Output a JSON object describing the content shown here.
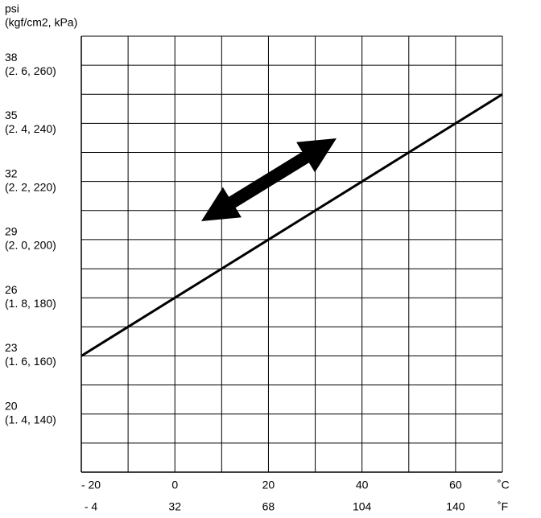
{
  "chart_data": {
    "type": "line",
    "ylabel": "psi",
    "ylabel2": "(kgf/cm2, kPa)",
    "xlabel": "˚C",
    "xlabel2": "˚F",
    "x": [
      -20,
      0,
      20,
      40,
      60,
      70
    ],
    "series": [
      {
        "color": "#000000",
        "values": [
          23,
          26,
          29,
          32,
          35,
          36.5
        ]
      }
    ],
    "xlim": [
      -20,
      70
    ],
    "ylim": [
      17,
      39.5
    ],
    "xticks": [
      {
        "value": -20,
        "label": "- 20"
      },
      0,
      20,
      40,
      60
    ],
    "xtick_secondary_labels": [
      "- 4",
      "32",
      "68",
      "104",
      "140"
    ],
    "yticks": [
      20,
      23,
      26,
      29,
      32,
      35,
      38
    ],
    "ytick_secondary_labels": [
      "(1. 4, 140)",
      "(1. 6, 160)",
      "(1. 8, 180)",
      "(2. 0, 200)",
      "(2. 2, 220)",
      "(2. 4, 240)",
      "(2. 6, 260)"
    ],
    "xgrid": [
      -20,
      -10,
      0,
      10,
      20,
      30,
      40,
      50,
      60,
      70
    ],
    "ygrid": [
      17,
      18.5,
      20,
      21.5,
      23,
      24.5,
      26,
      27.5,
      29,
      30.5,
      32,
      33.5,
      35,
      36.5,
      38,
      39.5
    ],
    "grid": true
  }
}
